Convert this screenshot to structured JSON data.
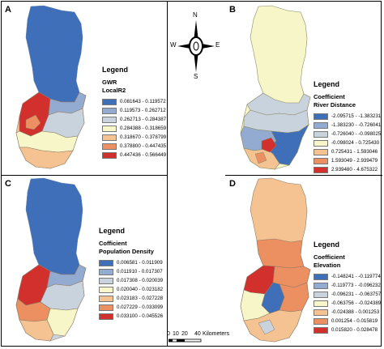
{
  "compass": {
    "n": "N",
    "s": "S",
    "e": "E",
    "w": "W"
  },
  "scale": {
    "labels": [
      "0",
      "10",
      "20",
      "40"
    ],
    "unit": "Kilometers"
  },
  "panels": [
    {
      "letter": "A",
      "legend_title": "Legend",
      "sub1": "GWR",
      "sub2": "LocalR2",
      "classes": [
        "0.081643 - 0.119572",
        "0.119573 - 0.262712",
        "0.262713 - 0.284387",
        "0.284388 - 0.318659",
        "0.318670 - 0.378799",
        "0.378800 - 0.447435",
        "0.447436 - 0.566449"
      ],
      "colors": [
        "#3f6fb8",
        "#93abd1",
        "#c9d3dd",
        "#f7f6c9",
        "#f5c392",
        "#ec8f61",
        "#d2302c"
      ]
    },
    {
      "letter": "B",
      "legend_title": "Legend",
      "sub1": "Coefficient",
      "sub2": "River Distance",
      "classes": [
        "-2.095715 - -1.383231",
        "-1.383230 - -0.726041",
        "-0.726040 - -0.098025",
        "-0.098024 - 0.725430",
        "0.725431 - 1.593046",
        "1.593049 - 2.939479",
        "2.939480 - 4.675322"
      ],
      "colors": [
        "#3f6fb8",
        "#93abd1",
        "#c9d3dd",
        "#f7f6c9",
        "#f5c392",
        "#ec8f61",
        "#d2302c"
      ]
    },
    {
      "letter": "C",
      "legend_title": "Legend",
      "sub1": "Cofficient",
      "sub2": "Population Density",
      "classes": [
        "0.006581 - 0.011909",
        "0.011910 - 0.017307",
        "0.017308 - 0.020039",
        "0.020040 - 0.023182",
        "0.023183 - 0.027228",
        "0.027229 - 0.033099",
        "0.033100 - 0.045526"
      ],
      "colors": [
        "#3f6fb8",
        "#93abd1",
        "#c9d3dd",
        "#f7f6c9",
        "#f5c392",
        "#ec8f61",
        "#d2302c"
      ]
    },
    {
      "letter": "D",
      "legend_title": "Legend",
      "sub1": "Coefficient",
      "sub2": "Elevation",
      "classes": [
        "-0.148241 - -0.119774",
        "-0.119773 - -0.096232",
        "-0.096231 - -0.063757",
        "-0.063756 - -0.024389",
        "-0.024388 - 0.001253",
        "0.001254 - 0.015819",
        "0.015820 - 0.028478"
      ],
      "colors": [
        "#3f6fb8",
        "#93abd1",
        "#c9d3dd",
        "#f7f6c9",
        "#f5c392",
        "#ec8f61",
        "#d2302c"
      ]
    }
  ]
}
